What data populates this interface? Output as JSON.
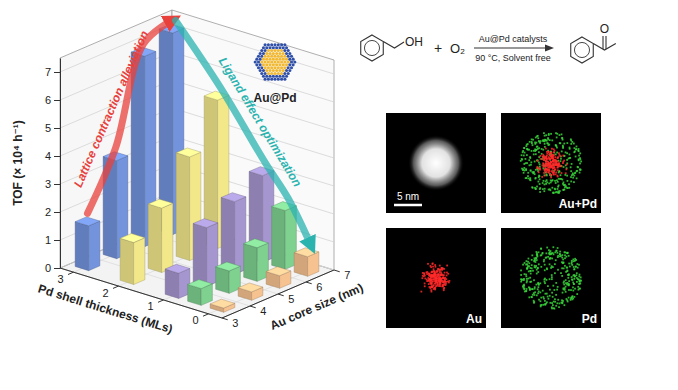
{
  "chart_data": {
    "type": "bar",
    "x_label": "Au core size (nm)",
    "y_label": "TOF (× 10⁴ h⁻¹)",
    "z_label": "Pd shell thickness (MLs)",
    "x": [
      3.5,
      4.5,
      5.5,
      6.5
    ],
    "series": [
      {
        "z": 0,
        "color": "#f6c28f",
        "values": [
          0.15,
          0.3,
          0.45,
          0.7
        ]
      },
      {
        "z": 0.5,
        "color": "#7fd190",
        "values": [
          0.6,
          0.8,
          1.2,
          2.1
        ]
      },
      {
        "z": 1,
        "color": "#a596cf",
        "values": [
          0.9,
          2.1,
          2.6,
          3.1
        ]
      },
      {
        "z": 2,
        "color": "#f2e88a",
        "values": [
          1.5,
          2.3,
          3.7,
          5.3
        ]
      },
      {
        "z": 3,
        "color": "#7393dc",
        "values": [
          1.6,
          3.5,
          6.8,
          7.2
        ]
      }
    ],
    "xlim": [
      3,
      7
    ],
    "xticks": [
      3,
      4,
      5,
      6,
      7
    ],
    "ylim": [
      0,
      7.5
    ],
    "yticks": [
      0,
      1,
      2,
      3,
      4,
      5,
      6,
      7
    ],
    "zlim": [
      -0.3,
      3.3
    ],
    "zticks": [
      0,
      1,
      2,
      3
    ],
    "grid": true,
    "annotations": [
      {
        "text": "Lattice contraction alleviation",
        "color": "#e8413c"
      },
      {
        "text": "Ligand effect optimization",
        "color": "#2bb3b0"
      },
      {
        "text": "Au@Pd"
      }
    ]
  },
  "reaction": {
    "reactant_group": "OH",
    "plus": "+",
    "oxidant": "O₂",
    "catalyst": "Au@Pd catalysts",
    "conditions": "90 °C, Solvent free",
    "product_group": "O"
  },
  "micrographs": {
    "scale_bar": "5 nm",
    "maps": [
      "Au+Pd",
      "Au",
      "Pd"
    ]
  }
}
